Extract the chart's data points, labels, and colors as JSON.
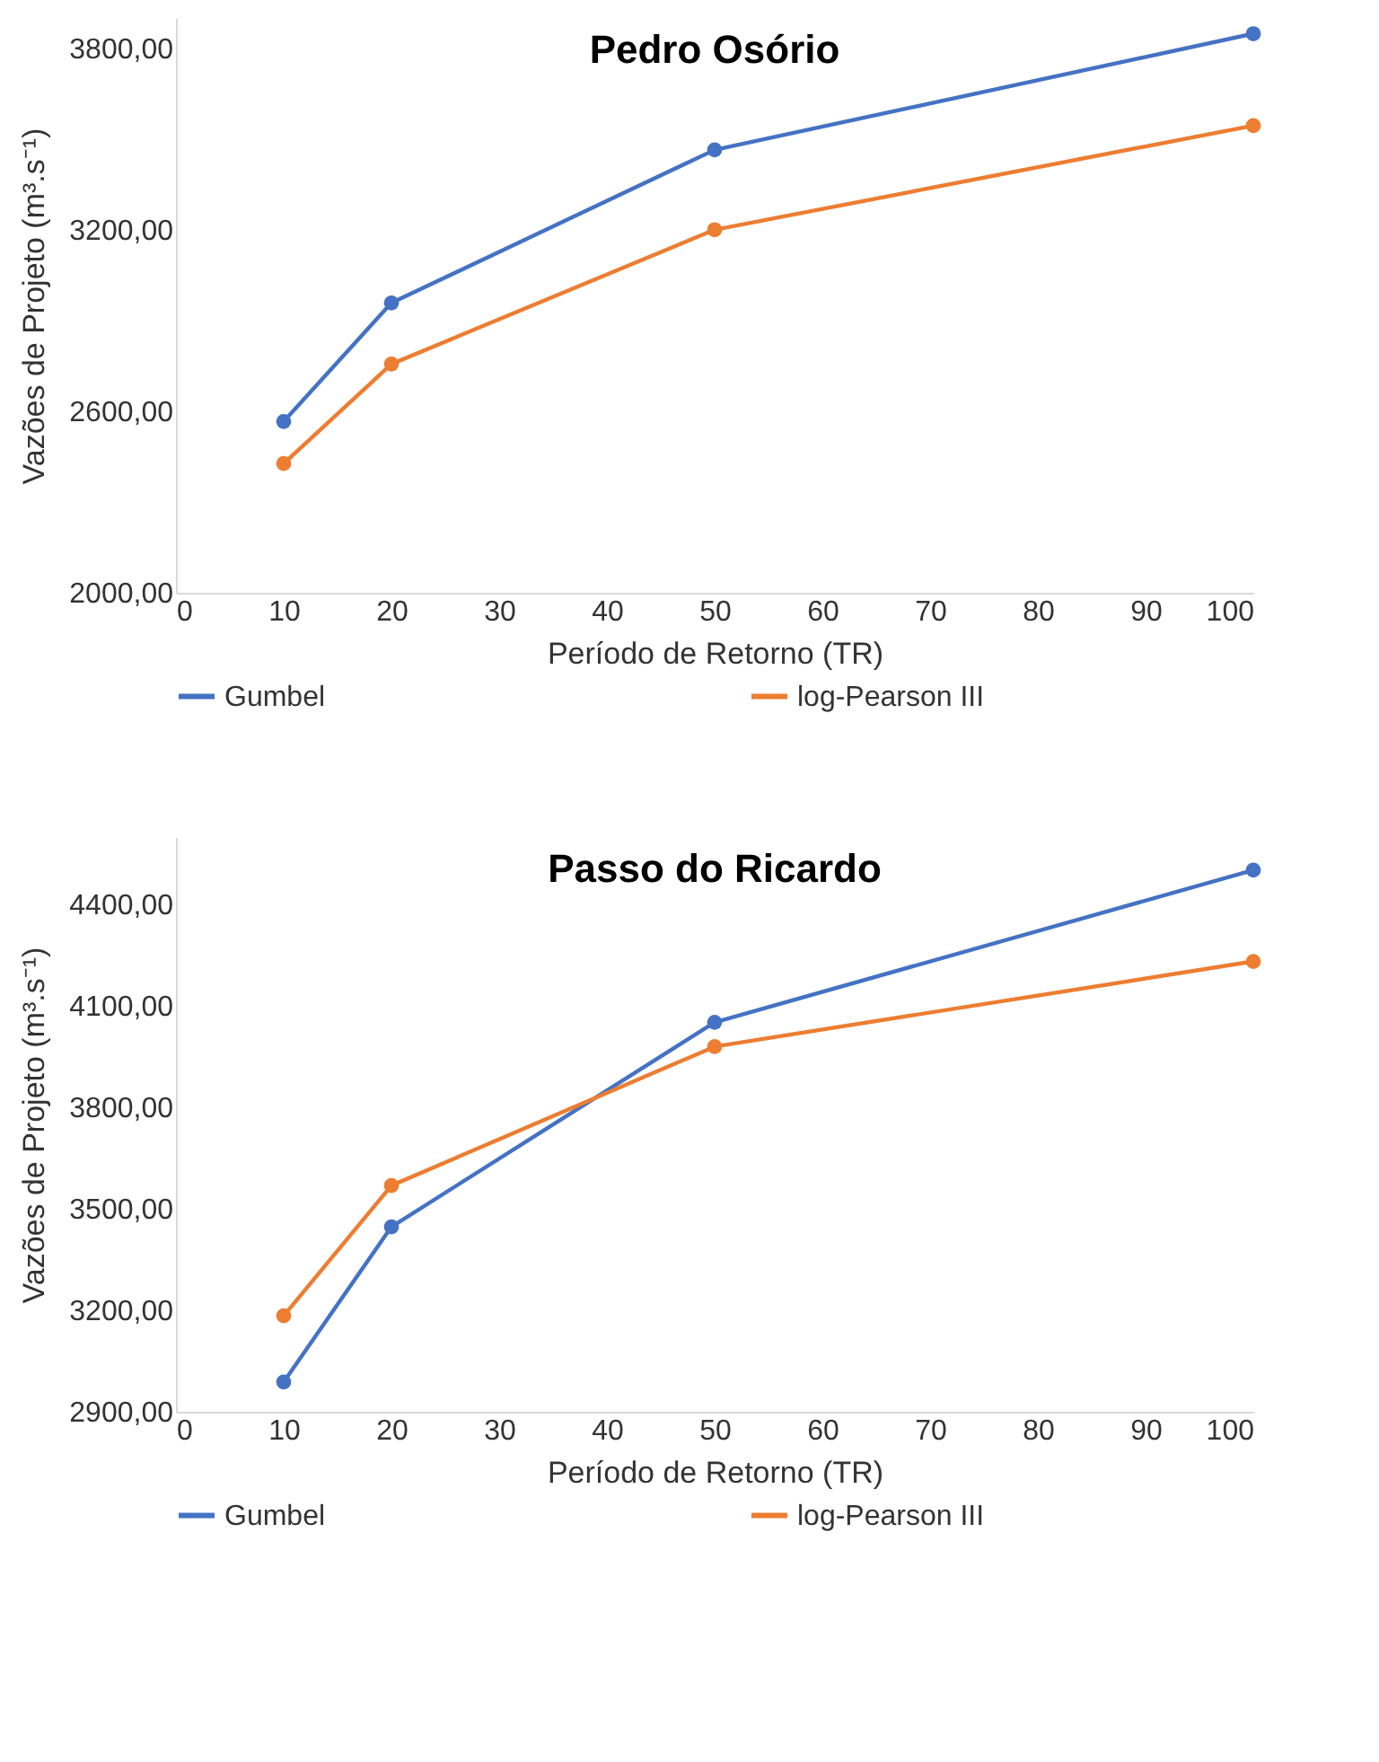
{
  "chart_data": [
    {
      "type": "line",
      "title": "Pedro Osório",
      "xlabel": "Período de Retorno (TR)",
      "ylabel": "Vazões de Projeto (m³.s⁻¹)",
      "x": [
        10,
        20,
        50,
        100
      ],
      "series": [
        {
          "name": "Gumbel",
          "color": "#4472c4",
          "values": [
            2566,
            2958,
            3464,
            3848
          ]
        },
        {
          "name": "log-Pearson III",
          "color": "#ed7d31",
          "values": [
            2427,
            2756,
            3200,
            3544
          ]
        }
      ],
      "xlim": [
        0,
        100
      ],
      "xticks": [
        0,
        10,
        20,
        30,
        40,
        50,
        60,
        70,
        80,
        90,
        100
      ],
      "ylim": [
        2000,
        3900
      ],
      "yticks": [
        {
          "value": 2000,
          "label": "2000,00"
        },
        {
          "value": 2600,
          "label": "2600,00"
        },
        {
          "value": 3200,
          "label": "3200,00"
        },
        {
          "value": 3800,
          "label": "3800,00"
        }
      ],
      "grid": false,
      "legend": "bottom",
      "marker": "circle",
      "line_style": "solid"
    },
    {
      "type": "line",
      "title": "Passo do Ricardo",
      "xlabel": "Período de Retorno (TR)",
      "ylabel": "Vazões de Projeto (m³.s⁻¹)",
      "x": [
        10,
        20,
        50,
        100
      ],
      "series": [
        {
          "name": "Gumbel",
          "color": "#4472c4",
          "values": [
            2988,
            3447,
            4052,
            4502
          ]
        },
        {
          "name": "log-Pearson III",
          "color": "#ed7d31",
          "values": [
            3184,
            3569,
            3980,
            4232
          ]
        }
      ],
      "xlim": [
        0,
        100
      ],
      "xticks": [
        0,
        10,
        20,
        30,
        40,
        50,
        60,
        70,
        80,
        90,
        100
      ],
      "ylim": [
        2900,
        4600
      ],
      "yticks": [
        {
          "value": 2900,
          "label": "2900,00"
        },
        {
          "value": 3200,
          "label": "3200,00"
        },
        {
          "value": 3500,
          "label": "3500,00"
        },
        {
          "value": 3800,
          "label": "3800,00"
        },
        {
          "value": 4100,
          "label": "4100,00"
        },
        {
          "value": 4400,
          "label": "4400,00"
        }
      ],
      "grid": false,
      "legend": "bottom",
      "marker": "circle",
      "line_style": "solid"
    }
  ]
}
